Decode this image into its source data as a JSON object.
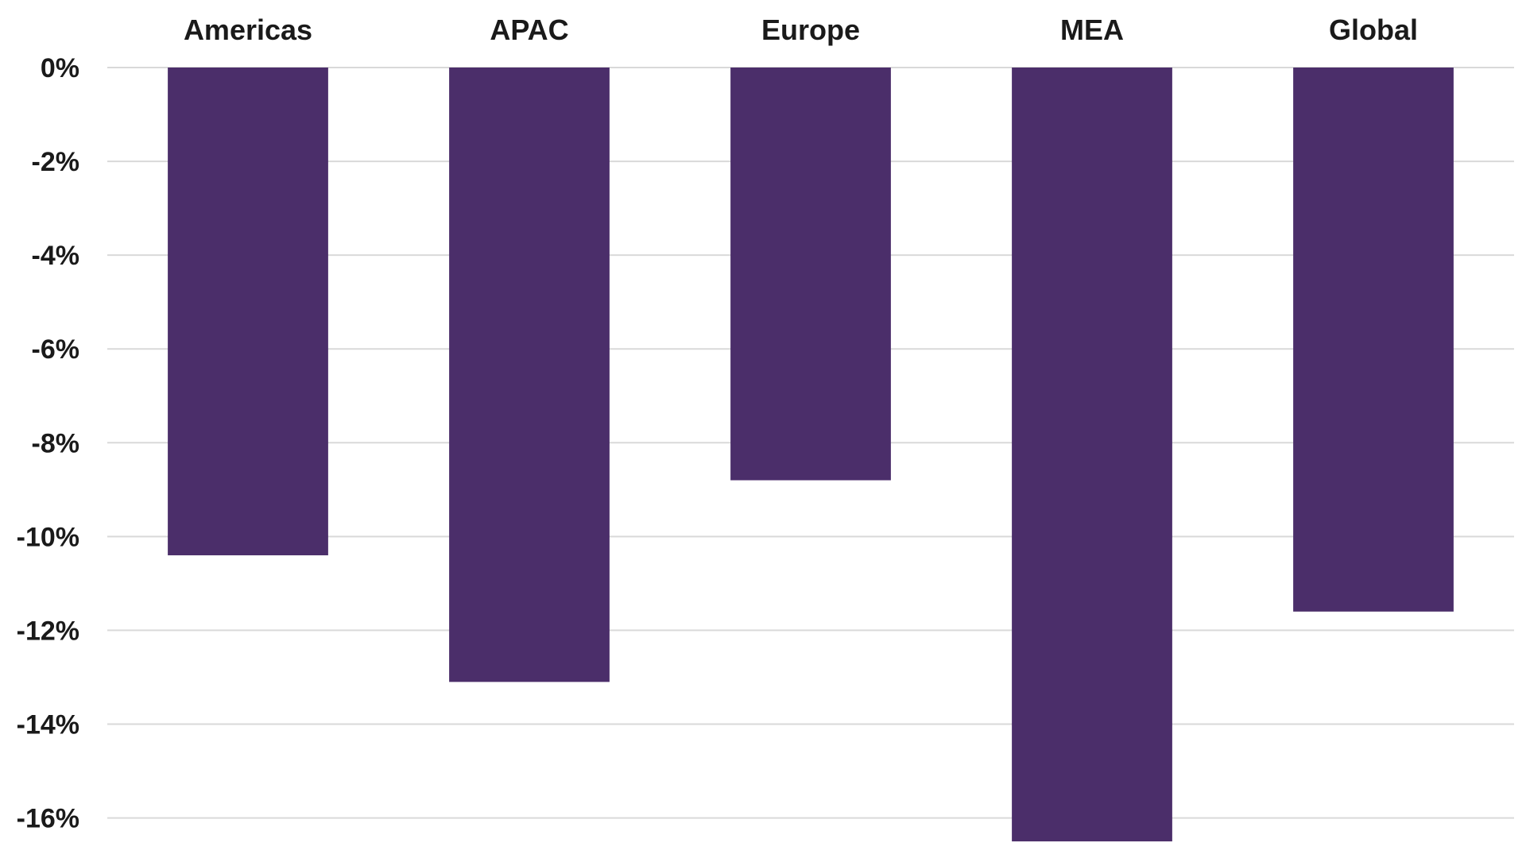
{
  "chart_data": {
    "type": "bar",
    "categories": [
      "Americas",
      "APAC",
      "Europe",
      "MEA",
      "Global"
    ],
    "values": [
      -10.4,
      -13.1,
      -8.8,
      -16.5,
      -11.6
    ],
    "yticks": [
      0,
      -2,
      -4,
      -6,
      -8,
      -10,
      -12,
      -14,
      -16
    ],
    "ytick_labels": [
      "0%",
      "-2%",
      "-4%",
      "-6%",
      "-8%",
      "-10%",
      "-12%",
      "-14%",
      "-16%"
    ],
    "ylim": [
      -16.6,
      0
    ],
    "grid": true,
    "category_axis_position": "top",
    "legend": "none",
    "bar_color": "#4b2e6a",
    "grid_color": "#d9d9d9"
  }
}
